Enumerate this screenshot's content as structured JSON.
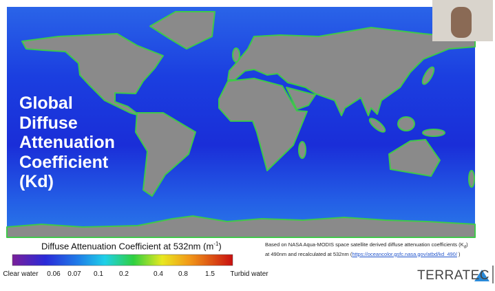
{
  "slide": {
    "title_lines": [
      "Global",
      "Diffuse",
      "Attenuation",
      "Coefficient",
      "(Kd)"
    ],
    "colorbar": {
      "title": "Diffuse Attenuation Coefficient at 532nm (m",
      "title_sup": "-1",
      "title_end": ")",
      "ticks": [
        "Clear water",
        "0.06",
        "0.07",
        "0.1",
        "0.2",
        "0.4",
        "0.8",
        "1.5",
        "Turbid water"
      ]
    },
    "source": {
      "text": "Based on NASA Aqua-MODIS space satellite derived diffuse attenuation coefficients (K",
      "sub": "d",
      "text_end": ")",
      "line2": "at 490nm and recalculated at 532nm (",
      "link": "https://oceancolor.gsfc.nasa.gov/atbd/kd_490/",
      "line2_end": " )"
    },
    "logo": "TERRATEC"
  }
}
